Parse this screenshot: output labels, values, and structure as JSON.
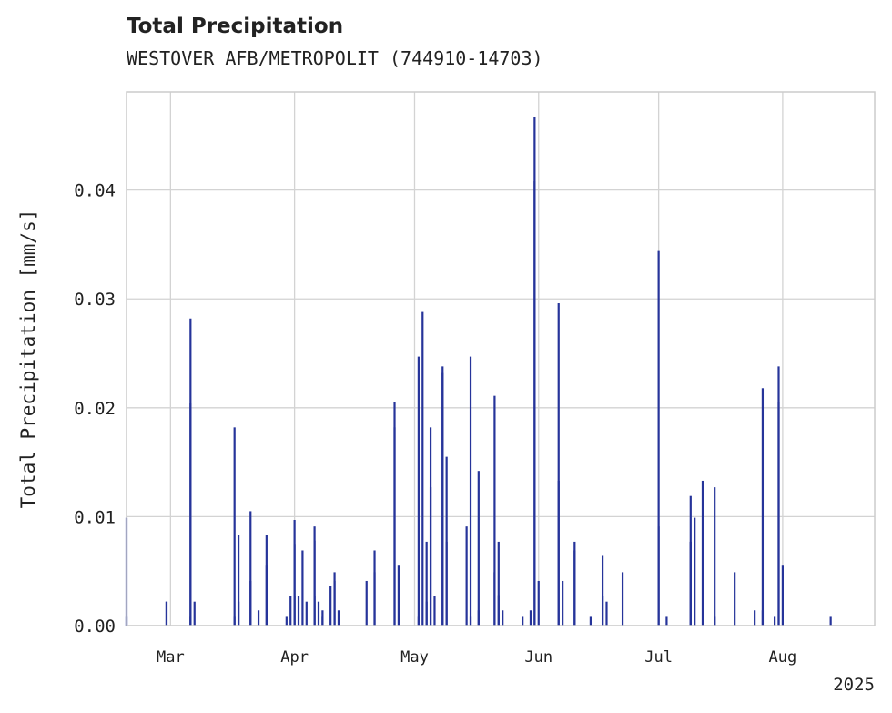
{
  "chart_data": {
    "type": "bar",
    "title": "Total Precipitation",
    "subtitle": "WESTOVER AFB/METROPOLIT (744910-14703)",
    "ylabel": "Total Precipitation [mm/s]",
    "xlabel": "",
    "ylim": [
      0,
      0.049
    ],
    "xlim": [
      "2025-02-18",
      "2025-08-24"
    ],
    "yticks": [
      "0.00",
      "0.01",
      "0.02",
      "0.03",
      "0.04"
    ],
    "ytick_values": [
      0,
      0.01,
      0.02,
      0.03,
      0.04
    ],
    "xticks": [
      "Mar",
      "Apr",
      "May",
      "Jun",
      "Jul",
      "Aug"
    ],
    "xtick_dates": [
      "2025-03-01",
      "2025-04-01",
      "2025-05-01",
      "2025-06-01",
      "2025-07-01",
      "2025-08-01"
    ],
    "year_label": "2025",
    "grid": true,
    "series": [
      {
        "color": "#26349a",
        "points": [
          [
            "2025-02-18",
            0.0099
          ],
          [
            "2025-02-18",
            0.0008
          ],
          [
            "2025-02-28",
            0.0022
          ],
          [
            "2025-02-28",
            0.0022
          ],
          [
            "2025-03-06",
            0.0008
          ],
          [
            "2025-03-06",
            0.0204
          ],
          [
            "2025-03-06",
            0.0282
          ],
          [
            "2025-03-07",
            0.0022
          ],
          [
            "2025-03-17",
            0.0008
          ],
          [
            "2025-03-17",
            0.0182
          ],
          [
            "2025-03-18",
            0.0083
          ],
          [
            "2025-03-18",
            0.0022
          ],
          [
            "2025-03-21",
            0.0105
          ],
          [
            "2025-03-21",
            0.0041
          ],
          [
            "2025-03-23",
            0.0014
          ],
          [
            "2025-03-25",
            0.0083
          ],
          [
            "2025-03-25",
            0.0055
          ],
          [
            "2025-03-30",
            0.0008
          ],
          [
            "2025-03-31",
            0.0027
          ],
          [
            "2025-04-01",
            0.0027
          ],
          [
            "2025-04-01",
            0.0075
          ],
          [
            "2025-04-01",
            0.0097
          ],
          [
            "2025-04-02",
            0.0027
          ],
          [
            "2025-04-03",
            0.0069
          ],
          [
            "2025-04-04",
            0.0022
          ],
          [
            "2025-04-06",
            0.0091
          ],
          [
            "2025-04-06",
            0.0078
          ],
          [
            "2025-04-06",
            0.0027
          ],
          [
            "2025-04-07",
            0.0022
          ],
          [
            "2025-04-08",
            0.0014
          ],
          [
            "2025-04-08",
            0.0008
          ],
          [
            "2025-04-10",
            0.0036
          ],
          [
            "2025-04-11",
            0.0041
          ],
          [
            "2025-04-11",
            0.0049
          ],
          [
            "2025-04-12",
            0.0014
          ],
          [
            "2025-04-19",
            0.0041
          ],
          [
            "2025-04-21",
            0.0069
          ],
          [
            "2025-04-21",
            0.0049
          ],
          [
            "2025-04-26",
            0.0205
          ],
          [
            "2025-04-26",
            0.0182
          ],
          [
            "2025-04-27",
            0.0055
          ],
          [
            "2025-05-02",
            0.0247
          ],
          [
            "2025-05-02",
            0.0008
          ],
          [
            "2025-05-03",
            0.0288
          ],
          [
            "2025-05-04",
            0.0077
          ],
          [
            "2025-05-04",
            0.0022
          ],
          [
            "2025-05-05",
            0.0182
          ],
          [
            "2025-05-05",
            0.0127
          ],
          [
            "2025-05-06",
            0.0027
          ],
          [
            "2025-05-08",
            0.0238
          ],
          [
            "2025-05-08",
            0.0232
          ],
          [
            "2025-05-09",
            0.0155
          ],
          [
            "2025-05-09",
            0.0077
          ],
          [
            "2025-05-14",
            0.0091
          ],
          [
            "2025-05-15",
            0.0247
          ],
          [
            "2025-05-15",
            0.0008
          ],
          [
            "2025-05-17",
            0.0142
          ],
          [
            "2025-05-17",
            0.0014
          ],
          [
            "2025-05-21",
            0.0049
          ],
          [
            "2025-05-21",
            0.0211
          ],
          [
            "2025-05-22",
            0.0077
          ],
          [
            "2025-05-22",
            0.0028
          ],
          [
            "2025-05-23",
            0.0014
          ],
          [
            "2025-05-28",
            0.0008
          ],
          [
            "2025-05-30",
            0.0014
          ],
          [
            "2025-05-31",
            0.0408
          ],
          [
            "2025-05-31",
            0.0467
          ],
          [
            "2025-06-01",
            0.0041
          ],
          [
            "2025-06-06",
            0.0296
          ],
          [
            "2025-06-06",
            0.0133
          ],
          [
            "2025-06-07",
            0.0041
          ],
          [
            "2025-06-10",
            0.0077
          ],
          [
            "2025-06-10",
            0.0069
          ],
          [
            "2025-06-14",
            0.0008
          ],
          [
            "2025-06-17",
            0.0027
          ],
          [
            "2025-06-17",
            0.0064
          ],
          [
            "2025-06-18",
            0.0022
          ],
          [
            "2025-06-22",
            0.0049
          ],
          [
            "2025-07-01",
            0.0344
          ],
          [
            "2025-07-01",
            0.0091
          ],
          [
            "2025-07-03",
            0.0008
          ],
          [
            "2025-07-09",
            0.0077
          ],
          [
            "2025-07-09",
            0.0119
          ],
          [
            "2025-07-09",
            0.0077
          ],
          [
            "2025-07-10",
            0.0099
          ],
          [
            "2025-07-12",
            0.0133
          ],
          [
            "2025-07-15",
            0.0127
          ],
          [
            "2025-07-15",
            0.0008
          ],
          [
            "2025-07-20",
            0.0049
          ],
          [
            "2025-07-25",
            0.0014
          ],
          [
            "2025-07-27",
            0.0218
          ],
          [
            "2025-07-27",
            0.0014
          ],
          [
            "2025-07-30",
            0.0008
          ],
          [
            "2025-07-31",
            0.0238
          ],
          [
            "2025-07-31",
            0.0205
          ],
          [
            "2025-08-01",
            0.0055
          ],
          [
            "2025-08-13",
            0.0008
          ]
        ]
      }
    ]
  }
}
